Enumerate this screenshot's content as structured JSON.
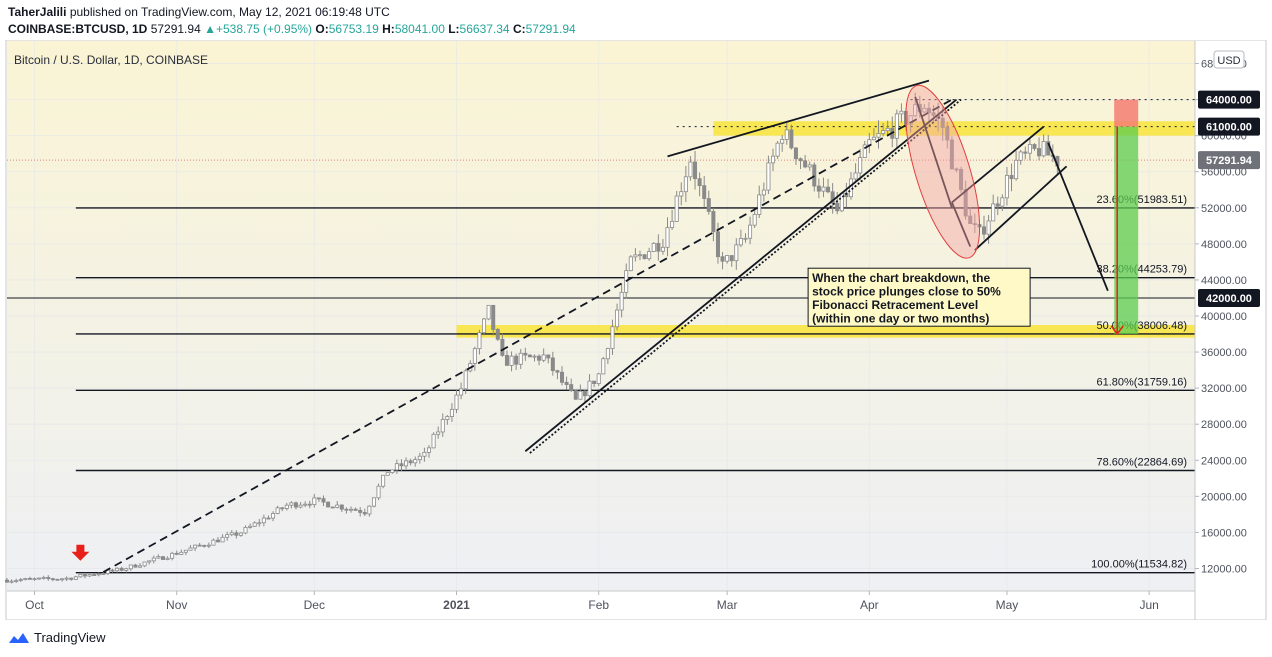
{
  "header": {
    "author": "TaherJalili",
    "published_text": "published on TradingView.com, May 12, 2021 06:19:48 UTC",
    "symbol": "COINBASE:BTCUSD, 1D",
    "last": "57291.94",
    "change": "▲+538.75 (+0.95%)",
    "open_label": "O:",
    "open": "56753.19",
    "high_label": "H:",
    "high": "58041.00",
    "low_label": "L:",
    "low": "56637.34",
    "close_label": "C:",
    "close": "57291.94"
  },
  "footer": {
    "brand": "TradingView"
  },
  "chart_data": {
    "type": "candlestick",
    "title": "Bitcoin / U.S. Dollar, 1D, COINBASE",
    "currency_button": "USD",
    "ylim": [
      9500,
      70500
    ],
    "y_ticks": [
      12000,
      16000,
      20000,
      24000,
      28000,
      32000,
      36000,
      40000,
      44000,
      48000,
      52000,
      56000,
      60000,
      64000,
      68000
    ],
    "y_tick_labels": [
      "12000.00",
      "16000.00",
      "20000.00",
      "24000.00",
      "28000.00",
      "32000.00",
      "36000.00",
      "40000.00",
      "44000.00",
      "48000.00",
      "52000.00",
      "56000.00",
      "60000.00",
      "64000.00",
      "68000.00"
    ],
    "x_range": [
      "2020-09-25",
      "2021-06-11"
    ],
    "x_ticks": [
      {
        "label": "Oct",
        "date": "2020-10-01"
      },
      {
        "label": "Nov",
        "date": "2020-11-01"
      },
      {
        "label": "Dec",
        "date": "2020-12-01"
      },
      {
        "label": "2021",
        "date": "2021-01-01"
      },
      {
        "label": "Feb",
        "date": "2021-02-01"
      },
      {
        "label": "Mar",
        "date": "2021-03-01"
      },
      {
        "label": "Apr",
        "date": "2021-04-01"
      },
      {
        "label": "May",
        "date": "2021-05-01"
      },
      {
        "label": "Jun",
        "date": "2021-06-01"
      }
    ],
    "close_path": [
      [
        "2020-09-25",
        10700
      ],
      [
        "2020-10-08",
        10900
      ],
      [
        "2020-10-20",
        11900
      ],
      [
        "2020-11-01",
        13700
      ],
      [
        "2020-11-15",
        16000
      ],
      [
        "2020-11-25",
        19000
      ],
      [
        "2020-12-01",
        19500
      ],
      [
        "2020-12-12",
        18300
      ],
      [
        "2020-12-17",
        22800
      ],
      [
        "2020-12-25",
        24500
      ],
      [
        "2021-01-02",
        32000
      ],
      [
        "2021-01-08",
        40500
      ],
      [
        "2021-01-11",
        35000
      ],
      [
        "2021-01-20",
        35500
      ],
      [
        "2021-01-27",
        30500
      ],
      [
        "2021-02-01",
        33500
      ],
      [
        "2021-02-08",
        46000
      ],
      [
        "2021-02-15",
        48500
      ],
      [
        "2021-02-21",
        57500
      ],
      [
        "2021-02-28",
        45500
      ],
      [
        "2021-03-05",
        48500
      ],
      [
        "2021-03-13",
        60500
      ],
      [
        "2021-03-25",
        51500
      ],
      [
        "2021-04-01",
        59000
      ],
      [
        "2021-04-13",
        63500
      ],
      [
        "2021-04-17",
        61000
      ],
      [
        "2021-04-23",
        50000
      ],
      [
        "2021-04-25",
        49000
      ],
      [
        "2021-05-03",
        57000
      ],
      [
        "2021-05-08",
        58500
      ],
      [
        "2021-05-12",
        57291.94
      ]
    ],
    "price_badges": [
      {
        "label": "64000.00",
        "value": 64000,
        "style": "dark"
      },
      {
        "label": "61000.00",
        "value": 61000,
        "style": "dark"
      },
      {
        "label": "57291.94",
        "value": 57291.94,
        "style": "gray"
      },
      {
        "label": "42000.00",
        "value": 42000,
        "style": "dark"
      }
    ],
    "fib_levels": [
      {
        "label": "23.60%(51983.51)",
        "value": 51983.51
      },
      {
        "label": "38.20%(44253.79)",
        "value": 44253.79
      },
      {
        "label": "50.00%(38006.48)",
        "value": 38006.48
      },
      {
        "label": "61.80%(31759.16)",
        "value": 31759.16
      },
      {
        "label": "78.60%(22864.69)",
        "value": 22864.69
      },
      {
        "label": "100.00%(11534.82)",
        "value": 11534.82
      }
    ],
    "fib_start": "2020-10-10",
    "resistance_zones": [
      {
        "from": 60000,
        "to": 61600,
        "start": "2021-02-26"
      },
      {
        "from": 37600,
        "to": 39000,
        "start": "2021-01-01"
      }
    ],
    "horizontal_lines": [
      {
        "value": 42000,
        "style": "solid"
      },
      {
        "value": 64000,
        "style": "dotted",
        "start": "2021-04-10"
      },
      {
        "value": 61000,
        "style": "dotted",
        "start": "2021-02-18"
      }
    ],
    "annotation": "When the chart breakdown, the\nstock price plunges close to 50%\nFibonacci Retracement Level\n(within one day or two months)",
    "projection": {
      "date": "2021-05-27",
      "from": 61000,
      "to": 38006.48,
      "top": 64000
    },
    "colors": {
      "candle": "#8a8a8a",
      "up_body": "#ffffff",
      "zone": "#f8e43a",
      "ellipse_fill": "#f4a3a3",
      "ellipse_stroke": "#e04040",
      "target_green": "#5dcc4f",
      "target_red": "#f47c73",
      "arrow_red": "#e8201a",
      "bg_top": "#faf4d4",
      "bg_bottom": "#eef0f4",
      "last_price_line": "#e08080"
    }
  }
}
